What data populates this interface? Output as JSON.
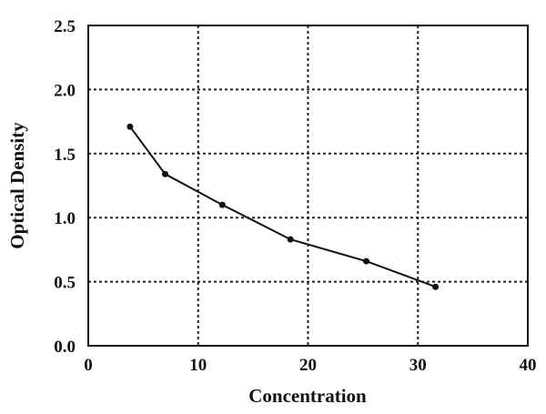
{
  "chart_data": {
    "type": "line",
    "title": "",
    "xlabel": "Concentration",
    "ylabel": "Optical Density",
    "xlim": [
      0,
      40
    ],
    "ylim": [
      0.0,
      2.5
    ],
    "x_ticks": [
      "0",
      "10",
      "20",
      "30",
      "40"
    ],
    "y_ticks": [
      "0.0",
      "0.5",
      "1.0",
      "1.5",
      "2.0",
      "2.5"
    ],
    "grid": true,
    "legend": "none",
    "series": [
      {
        "x": [
          3.8,
          7.0,
          12.2,
          18.4,
          25.3,
          31.6
        ],
        "y": [
          1.71,
          1.34,
          1.1,
          0.83,
          0.66,
          0.46
        ]
      }
    ]
  }
}
